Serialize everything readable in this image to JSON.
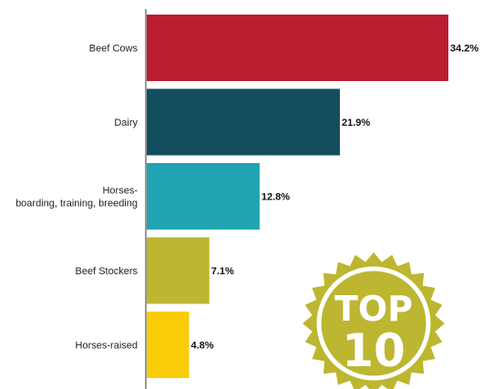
{
  "chart_data": {
    "type": "bar",
    "orientation": "horizontal",
    "categories": [
      [
        "Beef Cows"
      ],
      [
        "Dairy"
      ],
      [
        "Horses-",
        "boarding, training, breeding"
      ],
      [
        "Beef Stockers"
      ],
      [
        "Horses-raised"
      ]
    ],
    "values": [
      34.2,
      21.9,
      12.8,
      7.1,
      4.8
    ],
    "value_labels": [
      "34.2%",
      "21.9%",
      "12.8%",
      "7.1%",
      "4.8%"
    ],
    "colors": [
      "#bb1e31",
      "#134e5e",
      "#20a4b1",
      "#bcb630",
      "#f9cc07"
    ],
    "xlim": [
      0,
      34.2
    ],
    "grid": false,
    "legend": "none"
  },
  "badge": {
    "line1": "TOP",
    "line2": "10",
    "color": "#bcb630"
  }
}
